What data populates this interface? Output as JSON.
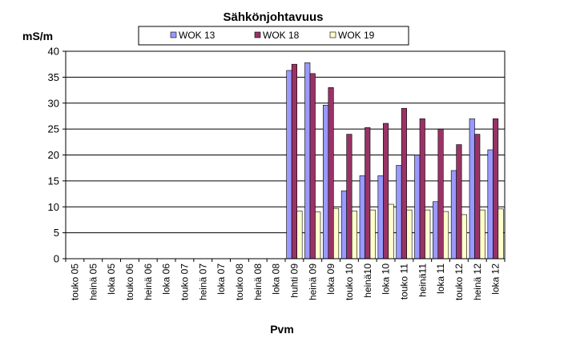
{
  "chart_data": {
    "type": "bar",
    "title": "Sähkönjohtavuus",
    "ylabel": "mS/m",
    "xlabel": "Pvm",
    "ylim": [
      0,
      40
    ],
    "yticks": [
      "0",
      "5",
      "10",
      "15",
      "20",
      "25",
      "30",
      "35",
      "40"
    ],
    "grid": true,
    "legend_position": "top",
    "categories": [
      "touko 05",
      "heinä 05",
      "loka 05",
      "touko 06",
      "heinä 06",
      "loka 06",
      "touko 07",
      "heinä 07",
      "loka 07",
      "touko 08",
      "heinä 08",
      "loka 08",
      "huhti 09",
      "heinä 09",
      "loka 09",
      "touko 10",
      "heinä10",
      "loka 10",
      "touko 11",
      "heinä11",
      "loka 11",
      "touko 12",
      "heinä 12",
      "loka 12"
    ],
    "series": [
      {
        "name": "WOK 13",
        "color": "#9999ff",
        "values": [
          null,
          null,
          null,
          null,
          null,
          null,
          null,
          null,
          null,
          null,
          null,
          null,
          36.3,
          37.8,
          29.6,
          13.1,
          16.0,
          16.0,
          18.0,
          20.0,
          11.0,
          17.0,
          27.0,
          21.0
        ]
      },
      {
        "name": "WOK 18",
        "color": "#993366",
        "values": [
          null,
          null,
          null,
          null,
          null,
          null,
          null,
          null,
          null,
          null,
          null,
          null,
          37.5,
          35.7,
          33.0,
          24.0,
          25.3,
          26.1,
          29.0,
          27.0,
          25.0,
          22.0,
          24.0,
          27.0
        ]
      },
      {
        "name": "WOK 19",
        "color": "#ffffcc",
        "values": [
          null,
          null,
          null,
          null,
          null,
          null,
          null,
          null,
          null,
          null,
          null,
          null,
          9.2,
          9.0,
          9.7,
          9.2,
          9.4,
          10.5,
          9.4,
          9.4,
          9.1,
          8.5,
          9.4,
          9.6
        ]
      }
    ]
  }
}
